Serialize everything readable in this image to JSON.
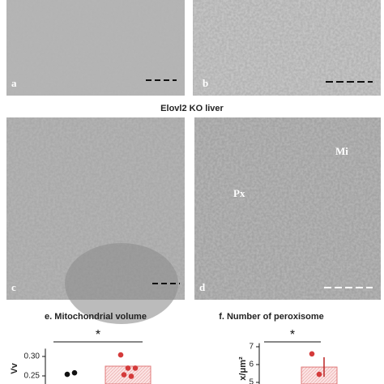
{
  "figure": {
    "panels": [
      {
        "label": "a"
      },
      {
        "label": "b"
      },
      {
        "label": "c"
      },
      {
        "label": "d",
        "annotations": [
          "Px",
          "Mi"
        ]
      }
    ],
    "section_title": "Elovl2 KO liver"
  },
  "chart_data": [
    {
      "type": "bar",
      "title": "e. Mitochondrial volume",
      "ylabel": "Vv",
      "significance": "*",
      "ylim": [
        0.24,
        0.32
      ],
      "yticks": [
        {
          "value": 0.25,
          "label": "0.25"
        },
        {
          "value": 0.3,
          "label": "0.30"
        }
      ],
      "series": [
        {
          "color": "#111111",
          "values": [
            0.254,
            0.258
          ]
        },
        {
          "color": "#d43a3a",
          "mean": 0.275,
          "values": [
            0.304,
            0.27,
            0.27,
            0.253,
            0.249
          ]
        }
      ]
    },
    {
      "type": "bar",
      "title": "f. Number of peroxisome",
      "ylabel": "x/μm²",
      "significance": "*",
      "ylim": [
        4.9,
        7.2
      ],
      "yticks": [
        5,
        6,
        7
      ],
      "series": [
        {
          "color": "#111111",
          "values": []
        },
        {
          "color": "#d43a3a",
          "mean": 5.86,
          "error": 0.55,
          "values": [
            6.6,
            5.45
          ]
        }
      ]
    }
  ]
}
